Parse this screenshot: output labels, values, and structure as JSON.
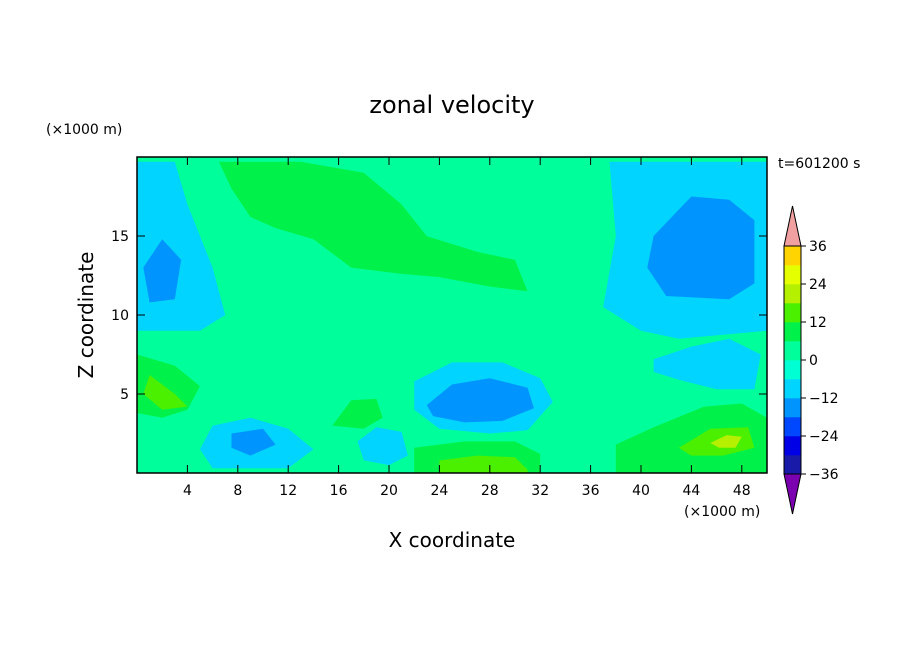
{
  "chart_data": {
    "type": "heatmap",
    "title": "zonal velocity",
    "xlabel": "X coordinate",
    "ylabel": "Z coordinate",
    "x_unit": "(×1000 m)",
    "y_unit": "(×1000 m)",
    "time_label": "t=601200 s",
    "xlim": [
      0,
      50
    ],
    "ylim": [
      0,
      20
    ],
    "x_ticks": [
      4,
      8,
      12,
      16,
      20,
      24,
      28,
      32,
      36,
      40,
      44,
      48
    ],
    "y_ticks": [
      5,
      10,
      15
    ],
    "colorbar": {
      "min": -42,
      "max": 42,
      "step": 6,
      "extend": "both",
      "tick_labels": [
        36,
        24,
        12,
        0,
        -12,
        -24,
        -36
      ],
      "colors": [
        "#7b00b0",
        "#3c1c9c",
        "#1a1aa8",
        "#0000e6",
        "#0048ff",
        "#0094ff",
        "#00d4ff",
        "#00ffd2",
        "#00ff9a",
        "#00f24a",
        "#4af000",
        "#b4f000",
        "#e6ff00",
        "#ffd400",
        "#ffaa00",
        "#ff7e00",
        "#ff5000",
        "#f02020",
        "#f0a0a0"
      ]
    },
    "background_level": 0,
    "regions": [
      {
        "value": -9,
        "points": [
          [
            0,
            19.7
          ],
          [
            3,
            19.7
          ],
          [
            4,
            17
          ],
          [
            6,
            13
          ],
          [
            7,
            10
          ],
          [
            5,
            9
          ],
          [
            0,
            9
          ]
        ]
      },
      {
        "value": -15,
        "points": [
          [
            0.5,
            13
          ],
          [
            2,
            14.8
          ],
          [
            3.5,
            13.5
          ],
          [
            3,
            11
          ],
          [
            1,
            10.8
          ]
        ]
      },
      {
        "value": 9,
        "points": [
          [
            0,
            7.5
          ],
          [
            3,
            6.8
          ],
          [
            5,
            5.5
          ],
          [
            4,
            4
          ],
          [
            2,
            3.5
          ],
          [
            0,
            3.8
          ]
        ]
      },
      {
        "value": 15,
        "points": [
          [
            1,
            6.2
          ],
          [
            3,
            5
          ],
          [
            4,
            4.2
          ],
          [
            2,
            4
          ],
          [
            0.5,
            5
          ]
        ]
      },
      {
        "value": -9,
        "points": [
          [
            6,
            3
          ],
          [
            9,
            3.5
          ],
          [
            12,
            2.8
          ],
          [
            14,
            1.5
          ],
          [
            12,
            0.3
          ],
          [
            6,
            0.3
          ],
          [
            5,
            1.5
          ]
        ]
      },
      {
        "value": -15,
        "points": [
          [
            7.5,
            2.5
          ],
          [
            10,
            2.8
          ],
          [
            11,
            1.8
          ],
          [
            9,
            1.1
          ],
          [
            7.5,
            1.6
          ]
        ]
      },
      {
        "value": 9,
        "points": [
          [
            6.5,
            19.7
          ],
          [
            13,
            19.7
          ],
          [
            18,
            19
          ],
          [
            21,
            17
          ],
          [
            23,
            15
          ],
          [
            27,
            14
          ],
          [
            30,
            13.5
          ],
          [
            31,
            11.5
          ],
          [
            28,
            11.8
          ],
          [
            24,
            12.4
          ],
          [
            21,
            12.6
          ],
          [
            17,
            13
          ],
          [
            14,
            14.8
          ],
          [
            11,
            15.5
          ],
          [
            9,
            16.2
          ],
          [
            7.5,
            18
          ]
        ]
      },
      {
        "value": 3,
        "points": [
          [
            20.5,
            19.7
          ],
          [
            30,
            19.7
          ],
          [
            32,
            19
          ],
          [
            33,
            17
          ],
          [
            32.5,
            13
          ],
          [
            31,
            11.5
          ],
          [
            30,
            13.5
          ],
          [
            27,
            14
          ],
          [
            23,
            15
          ],
          [
            21,
            17
          ]
        ]
      },
      {
        "value": -9,
        "points": [
          [
            37.5,
            19.7
          ],
          [
            50,
            19.7
          ],
          [
            50,
            9
          ],
          [
            43,
            8.5
          ],
          [
            40,
            9
          ],
          [
            37,
            10.5
          ],
          [
            38,
            15
          ]
        ]
      },
      {
        "value": -15,
        "points": [
          [
            41,
            15
          ],
          [
            44,
            17.5
          ],
          [
            47,
            17.3
          ],
          [
            49,
            16
          ],
          [
            49,
            12
          ],
          [
            47,
            11
          ],
          [
            42,
            11.2
          ],
          [
            40.5,
            13
          ]
        ]
      },
      {
        "value": -9,
        "points": [
          [
            22,
            5.8
          ],
          [
            25,
            7
          ],
          [
            29,
            7
          ],
          [
            32,
            6
          ],
          [
            33,
            4.5
          ],
          [
            31,
            2.7
          ],
          [
            28,
            2.5
          ],
          [
            24,
            2.8
          ],
          [
            22,
            4
          ]
        ]
      },
      {
        "value": -15,
        "points": [
          [
            23,
            4.3
          ],
          [
            25,
            5.6
          ],
          [
            28,
            6
          ],
          [
            31,
            5.4
          ],
          [
            31.5,
            4.1
          ],
          [
            29,
            3.3
          ],
          [
            26,
            3.2
          ],
          [
            23.5,
            3.6
          ]
        ]
      },
      {
        "value": 9,
        "points": [
          [
            22,
            1.6
          ],
          [
            26,
            2
          ],
          [
            30,
            2
          ],
          [
            32,
            1.2
          ],
          [
            32,
            0
          ],
          [
            22,
            0
          ]
        ]
      },
      {
        "value": 15,
        "points": [
          [
            24,
            0.8
          ],
          [
            27,
            1.1
          ],
          [
            30,
            1
          ],
          [
            31,
            0.2
          ],
          [
            31,
            0
          ],
          [
            24,
            0
          ]
        ]
      },
      {
        "value": -9,
        "points": [
          [
            41,
            7.2
          ],
          [
            44,
            8
          ],
          [
            47,
            8.5
          ],
          [
            49.5,
            7.5
          ],
          [
            49,
            5.3
          ],
          [
            46,
            5.3
          ],
          [
            43,
            5.9
          ],
          [
            41,
            6.4
          ]
        ]
      },
      {
        "value": 9,
        "points": [
          [
            38,
            0
          ],
          [
            38,
            1.8
          ],
          [
            41,
            2.9
          ],
          [
            45,
            4.2
          ],
          [
            48,
            4.4
          ],
          [
            50,
            3.5
          ],
          [
            50,
            0
          ]
        ]
      },
      {
        "value": 15,
        "points": [
          [
            43,
            1.6
          ],
          [
            45.5,
            2.8
          ],
          [
            48.5,
            2.9
          ],
          [
            49,
            1.6
          ],
          [
            46.5,
            1.1
          ],
          [
            44,
            1.1
          ]
        ]
      },
      {
        "value": 21,
        "points": [
          [
            45.5,
            1.9
          ],
          [
            46.8,
            2.4
          ],
          [
            48,
            2.3
          ],
          [
            47.5,
            1.6
          ],
          [
            46.2,
            1.6
          ]
        ]
      },
      {
        "value": 9,
        "points": [
          [
            15.5,
            3
          ],
          [
            17,
            4.6
          ],
          [
            19,
            4.7
          ],
          [
            19.5,
            3.5
          ],
          [
            18,
            2.8
          ]
        ]
      },
      {
        "value": -9,
        "points": [
          [
            17.5,
            2
          ],
          [
            19,
            2.9
          ],
          [
            21,
            2.6
          ],
          [
            21.5,
            1.1
          ],
          [
            20,
            0.5
          ],
          [
            18,
            0.8
          ]
        ]
      }
    ]
  }
}
